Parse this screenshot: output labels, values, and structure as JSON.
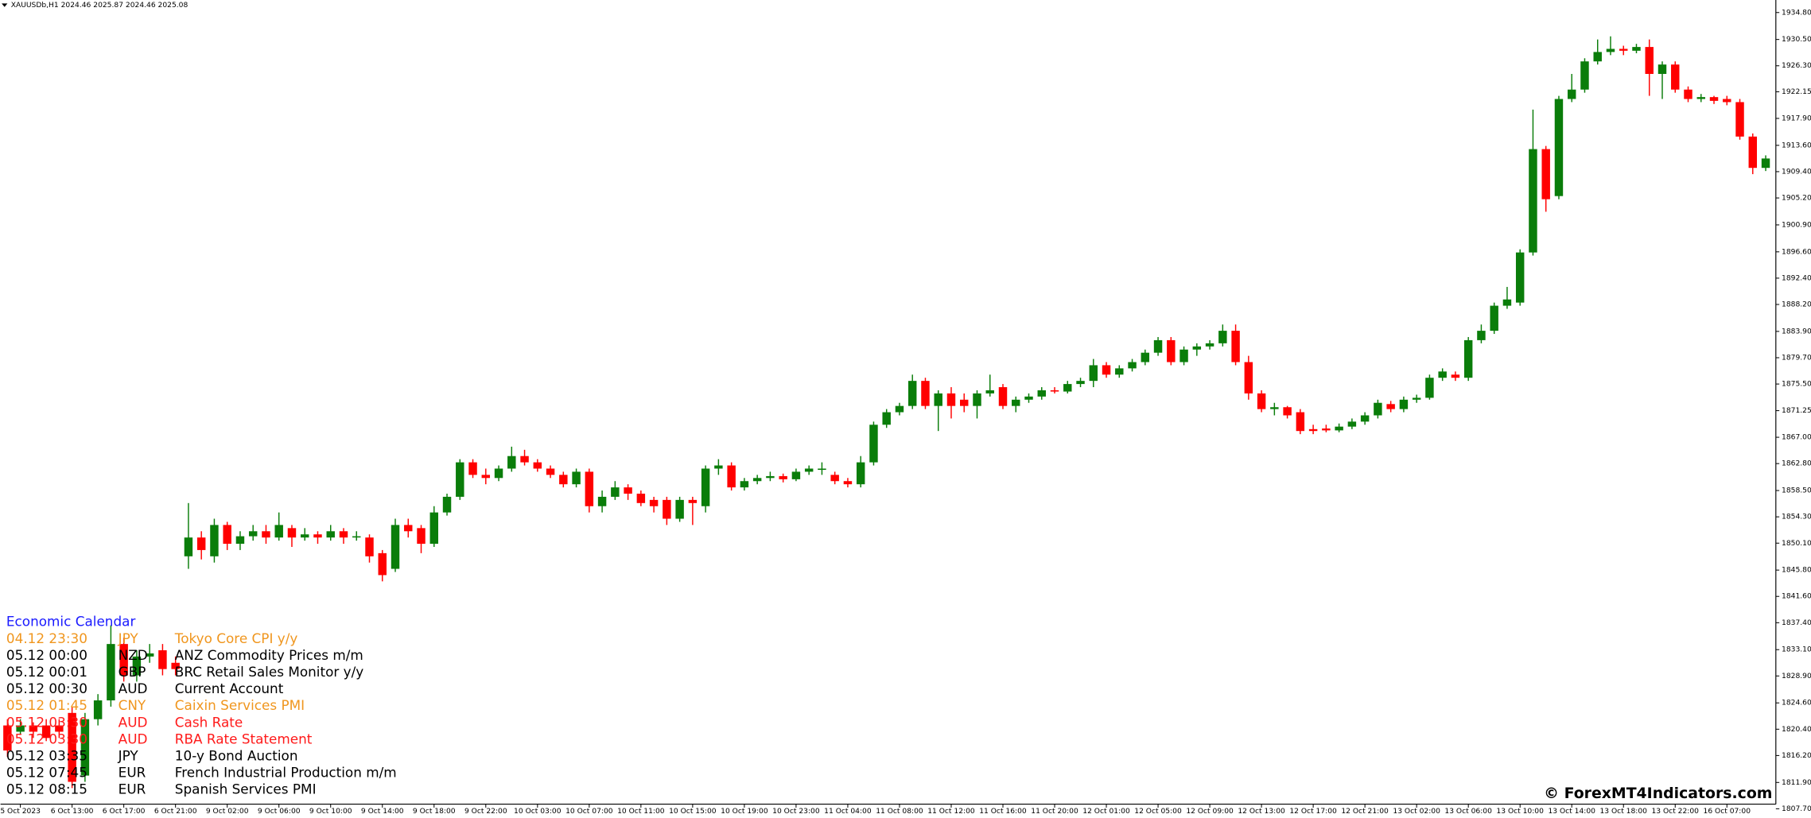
{
  "chart_data": {
    "type": "candlestick",
    "title": "XAUUSDb,H1 2024.46 2025.87 2024.46 2025.08",
    "categories": [
      null,
      "5 Oct 2023",
      null,
      null,
      null,
      "6 Oct 13:00",
      null,
      null,
      null,
      "6 Oct 17:00",
      null,
      null,
      null,
      "6 Oct 21:00",
      null,
      null,
      null,
      "9 Oct 02:00",
      null,
      null,
      null,
      "9 Oct 06:00",
      null,
      null,
      null,
      "9 Oct 10:00",
      null,
      null,
      null,
      "9 Oct 14:00",
      null,
      null,
      null,
      "9 Oct 18:00",
      null,
      null,
      null,
      "9 Oct 22:00",
      null,
      null,
      null,
      "10 Oct 03:00",
      null,
      null,
      null,
      "10 Oct 07:00",
      null,
      null,
      null,
      "10 Oct 11:00",
      null,
      null,
      null,
      "10 Oct 15:00",
      null,
      null,
      null,
      "10 Oct 19:00",
      null,
      null,
      null,
      "10 Oct 23:00",
      null,
      null,
      null,
      "11 Oct 04:00",
      null,
      null,
      null,
      "11 Oct 08:00",
      null,
      null,
      null,
      "11 Oct 12:00",
      null,
      null,
      null,
      "11 Oct 16:00",
      null,
      null,
      null,
      "11 Oct 20:00",
      null,
      null,
      null,
      "12 Oct 01:00",
      null,
      null,
      null,
      "12 Oct 05:00",
      null,
      null,
      null,
      "12 Oct 09:00",
      null,
      null,
      null,
      "12 Oct 13:00",
      null,
      null,
      null,
      "12 Oct 17:00",
      null,
      null,
      null,
      "12 Oct 21:00",
      null,
      null,
      null,
      "13 Oct 02:00",
      null,
      null,
      null,
      "13 Oct 06:00",
      null,
      null,
      null,
      "13 Oct 10:00",
      null,
      null,
      null,
      "13 Oct 14:00",
      null,
      null,
      null,
      "13 Oct 18:00",
      null,
      null,
      null,
      "13 Oct 22:00",
      null,
      null,
      null,
      "16 Oct 07:00",
      null,
      null,
      null
    ],
    "open": [
      1821,
      1820,
      1821,
      1821,
      1821,
      1823,
      1813,
      1822,
      1825,
      1834,
      1829,
      1832,
      1833,
      1831,
      1848,
      1851,
      1848,
      1853,
      1850,
      1851.2,
      1852,
      1851,
      1852.5,
      1851,
      1851.5,
      1851,
      1852,
      1851,
      1851,
      1848.5,
      1846,
      1853,
      1852.5,
      1850,
      1855,
      1857.5,
      1863,
      1861,
      1860.5,
      1862,
      1864,
      1863,
      1862,
      1861,
      1859.5,
      1861.5,
      1856,
      1857.5,
      1859,
      1858,
      1857,
      1857,
      1854,
      1857,
      1856,
      1862,
      1862.5,
      1859,
      1860,
      1860.5,
      1860.8,
      1860.3,
      1861.5,
      1861.8,
      1861,
      1860,
      1859.5,
      1863,
      1869,
      1871,
      1872,
      1876,
      1872,
      1874,
      1873,
      1872,
      1874,
      1875,
      1872,
      1873,
      1873.5,
      1874.5,
      1874.3,
      1875.5,
      1876,
      1878.5,
      1877,
      1878,
      1879,
      1880.5,
      1882.5,
      1879,
      1881,
      1881.5,
      1882,
      1884,
      1879,
      1874,
      1871.5,
      1871.8,
      1871,
      1868.3,
      1868.4,
      1868.1,
      1868.7,
      1869.5,
      1870.5,
      1872.3,
      1871.5,
      1873,
      1873.3,
      1876.5,
      1877,
      1876.5,
      1882.5,
      1884,
      1888,
      1888.5,
      1896.5,
      1913,
      1905.5,
      1921,
      1922.5,
      1927,
      1928.5,
      1929,
      1928.7,
      1929.3,
      1925,
      1926.5,
      1922.5,
      1921,
      1921.3,
      1921,
      1920.5,
      1915,
      1910
    ],
    "high": [
      1822,
      1822,
      1821.5,
      1822,
      1822,
      1824,
      1823,
      1826,
      1837,
      1835,
      1833,
      1834,
      1834,
      1832,
      1856.5,
      1852,
      1854,
      1853.5,
      1852,
      1853,
      1853,
      1855,
      1853,
      1852.5,
      1852,
      1853,
      1852.5,
      1852,
      1851.5,
      1849,
      1854,
      1854,
      1853,
      1856,
      1858,
      1863.5,
      1863.5,
      1862,
      1862.5,
      1865.5,
      1865,
      1863.5,
      1862.5,
      1861.5,
      1862,
      1862,
      1858.5,
      1860,
      1859.5,
      1858.5,
      1857.5,
      1857.5,
      1857.5,
      1857.5,
      1862.5,
      1863.5,
      1863,
      1860.5,
      1861,
      1861.5,
      1861.2,
      1862,
      1862.5,
      1863,
      1861.5,
      1860.5,
      1864,
      1869.5,
      1871.5,
      1872.5,
      1877,
      1876.5,
      1874.5,
      1875,
      1874,
      1874.5,
      1877,
      1875.5,
      1873.5,
      1874,
      1875,
      1875,
      1876,
      1876.5,
      1879.5,
      1879,
      1878.5,
      1879.5,
      1881,
      1883,
      1883,
      1881.5,
      1882,
      1882.5,
      1885,
      1885,
      1880,
      1874.5,
      1872.5,
      1872,
      1871.5,
      1869,
      1869,
      1869.2,
      1870,
      1871,
      1873,
      1872.8,
      1873.5,
      1873.8,
      1877,
      1878,
      1877.5,
      1883,
      1885,
      1888.5,
      1891,
      1897,
      1919.3,
      1913.5,
      1921.5,
      1925,
      1927.5,
      1930.5,
      1931,
      1929.5,
      1929.8,
      1930.5,
      1927,
      1927,
      1923,
      1921.8,
      1921.5,
      1921.5,
      1921,
      1915.5,
      1912
    ],
    "low": [
      1816,
      1819.5,
      1819,
      1818.5,
      1819,
      1811,
      1812,
      1821,
      1824,
      1828,
      1828,
      1831,
      1829,
      1829,
      1846,
      1847.5,
      1847,
      1849,
      1849,
      1850.5,
      1850,
      1850.5,
      1849.5,
      1850.5,
      1850,
      1850.5,
      1850,
      1850.5,
      1847,
      1844,
      1845.5,
      1851,
      1848.5,
      1849.5,
      1854.5,
      1857,
      1860.5,
      1859.5,
      1860,
      1861.5,
      1862.5,
      1861.5,
      1860.5,
      1859,
      1859,
      1855,
      1855,
      1857,
      1857,
      1856,
      1855,
      1853,
      1853.5,
      1853,
      1855,
      1861,
      1858.5,
      1858.5,
      1859.5,
      1860,
      1859.8,
      1860,
      1861,
      1861,
      1859.5,
      1859,
      1859,
      1862.5,
      1868.5,
      1870.5,
      1871.5,
      1871.5,
      1868,
      1870,
      1871,
      1870,
      1873.5,
      1871.5,
      1871,
      1872.5,
      1873,
      1874,
      1874,
      1875,
      1875,
      1876.5,
      1876.5,
      1877.5,
      1878.5,
      1880,
      1878.5,
      1878.5,
      1880,
      1881,
      1881.5,
      1878.5,
      1873,
      1871,
      1870.5,
      1870,
      1867.5,
      1867.5,
      1867.8,
      1867.8,
      1868.3,
      1869,
      1870,
      1871,
      1871,
      1872.5,
      1873,
      1876,
      1876,
      1876,
      1882,
      1883.5,
      1887.5,
      1888,
      1896,
      1903,
      1905,
      1920.5,
      1922,
      1926.5,
      1928,
      1928,
      1928.3,
      1921.5,
      1921,
      1922,
      1920.5,
      1920.5,
      1920.2,
      1920,
      1914.5,
      1909,
      1909.5
    ],
    "close": [
      1817,
      1821,
      1820,
      1819,
      1820,
      1812,
      1822,
      1825,
      1834,
      1829,
      1832,
      1832.5,
      1830,
      1830,
      1851,
      1849,
      1853,
      1850,
      1851.2,
      1852,
      1851,
      1853,
      1851,
      1851.5,
      1851,
      1852,
      1851,
      1851.2,
      1848,
      1845,
      1853,
      1852,
      1850,
      1855,
      1857.5,
      1863,
      1861,
      1860.5,
      1862,
      1864,
      1863,
      1862,
      1861,
      1859.5,
      1861.5,
      1856,
      1857.5,
      1859,
      1858,
      1856.5,
      1856,
      1854,
      1857,
      1856.5,
      1862,
      1862.5,
      1859,
      1860,
      1860.5,
      1860.8,
      1860.3,
      1861.5,
      1862,
      1862,
      1860,
      1859.5,
      1863,
      1869,
      1871,
      1872,
      1876,
      1872,
      1874,
      1872,
      1872,
      1874,
      1874.5,
      1872,
      1873,
      1873.5,
      1874.5,
      1874.3,
      1875.5,
      1876,
      1878.5,
      1877,
      1878,
      1879,
      1880.5,
      1882.5,
      1879,
      1881,
      1881.5,
      1882,
      1884,
      1879,
      1874,
      1871.5,
      1871.8,
      1870.5,
      1868,
      1868,
      1868.1,
      1868.7,
      1869.5,
      1870.5,
      1872.5,
      1871.5,
      1873,
      1873.3,
      1876.5,
      1877.5,
      1876.5,
      1882.5,
      1884,
      1888,
      1889,
      1896.5,
      1913,
      1905,
      1921,
      1922.5,
      1927,
      1928.5,
      1929,
      1928.7,
      1929.3,
      1925,
      1926.5,
      1922.5,
      1921,
      1921.3,
      1920.7,
      1920.5,
      1915,
      1910,
      1911.5
    ],
    "up_color": "#0a7d0a",
    "down_color": "#ff0000",
    "ylim": [
      1807.7,
      1936.8
    ],
    "yticks": [
      {
        "value": 1934.8,
        "label": "1934.80"
      },
      {
        "value": 1930.5,
        "label": "1930.50"
      },
      {
        "value": 1926.3,
        "label": "1926.30"
      },
      {
        "value": 1922.15,
        "label": "1922.15"
      },
      {
        "value": 1917.9,
        "label": "1917.90"
      },
      {
        "value": 1913.6,
        "label": "1913.60"
      },
      {
        "value": 1909.4,
        "label": "1909.40"
      },
      {
        "value": 1905.2,
        "label": "1905.20"
      },
      {
        "value": 1900.9,
        "label": "1900.90"
      },
      {
        "value": 1896.6,
        "label": "1896.60"
      },
      {
        "value": 1892.4,
        "label": "1892.40"
      },
      {
        "value": 1888.2,
        "label": "1888.20"
      },
      {
        "value": 1883.9,
        "label": "1883.90"
      },
      {
        "value": 1879.7,
        "label": "1879.70"
      },
      {
        "value": 1875.5,
        "label": "1875.50"
      },
      {
        "value": 1871.25,
        "label": "1871.25"
      },
      {
        "value": 1867,
        "label": "1867.00"
      },
      {
        "value": 1862.8,
        "label": "1862.80"
      },
      {
        "value": 1858.5,
        "label": "1858.50"
      },
      {
        "value": 1854.3,
        "label": "1854.30"
      },
      {
        "value": 1850.1,
        "label": "1850.10"
      },
      {
        "value": 1845.8,
        "label": "1845.80"
      },
      {
        "value": 1841.6,
        "label": "1841.60"
      },
      {
        "value": 1837.4,
        "label": "1837.40"
      },
      {
        "value": 1833.1,
        "label": "1833.10"
      },
      {
        "value": 1828.9,
        "label": "1828.90"
      },
      {
        "value": 1824.6,
        "label": "1824.60"
      },
      {
        "value": 1820.4,
        "label": "1820.40"
      },
      {
        "value": 1816.2,
        "label": "1816.20"
      },
      {
        "value": 1811.9,
        "label": "1811.90"
      },
      {
        "value": 1807.7,
        "label": "1807.70"
      }
    ],
    "grid": false
  },
  "calendar": {
    "title": "Economic Calendar",
    "title_color": "#1a1aff",
    "rows": [
      {
        "time": "04.12 23:30",
        "currency": "JPY",
        "event": "Tokyo Core CPI y/y",
        "color": "#f0961e"
      },
      {
        "time": "05.12 00:00",
        "currency": "NZD",
        "event": "ANZ Commodity Prices m/m",
        "color": "#000000"
      },
      {
        "time": "05.12 00:01",
        "currency": "GBP",
        "event": "BRC Retail Sales Monitor y/y",
        "color": "#000000"
      },
      {
        "time": "05.12 00:30",
        "currency": "AUD",
        "event": "Current Account",
        "color": "#000000"
      },
      {
        "time": "05.12 01:45",
        "currency": "CNY",
        "event": "Caixin Services PMI",
        "color": "#f0961e"
      },
      {
        "time": "05.12 03:30",
        "currency": "AUD",
        "event": "Cash Rate",
        "color": "#ff1a1a"
      },
      {
        "time": "05.12 03:30",
        "currency": "AUD",
        "event": "RBA Rate Statement",
        "color": "#ff1a1a"
      },
      {
        "time": "05.12 03:35",
        "currency": "JPY",
        "event": "10-y Bond Auction",
        "color": "#000000"
      },
      {
        "time": "05.12 07:45",
        "currency": "EUR",
        "event": "French Industrial Production m/m",
        "color": "#000000"
      },
      {
        "time": "05.12 08:15",
        "currency": "EUR",
        "event": "Spanish Services PMI",
        "color": "#000000"
      }
    ]
  },
  "watermark": "© ForexMT4Indicators.com"
}
